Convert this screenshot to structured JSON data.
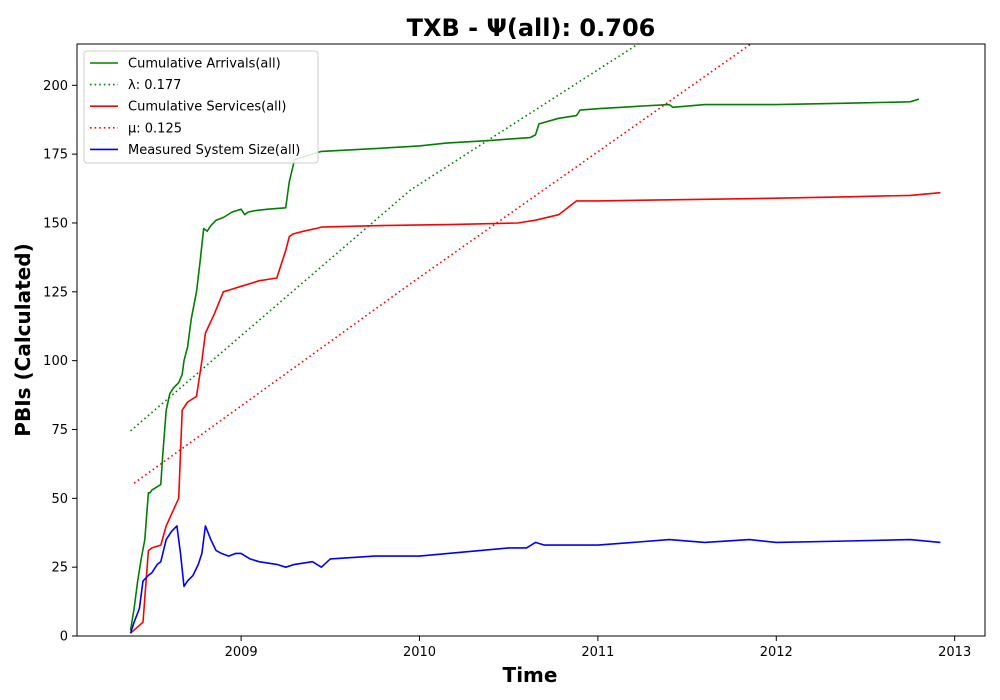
{
  "chart_data": {
    "type": "line",
    "title": "TXB -  Ψ(all): 0.706",
    "xlabel": "Time",
    "ylabel": "PBIs (Calculated)",
    "xlim": [
      2008.08,
      2013.17
    ],
    "ylim": [
      0,
      215
    ],
    "xticks": [
      {
        "value": 2009,
        "label": "2009"
      },
      {
        "value": 2010,
        "label": "2010"
      },
      {
        "value": 2011,
        "label": "2011"
      },
      {
        "value": 2012,
        "label": "2012"
      },
      {
        "value": 2013,
        "label": "2013"
      }
    ],
    "yticks": [
      {
        "value": 0,
        "label": "0"
      },
      {
        "value": 25,
        "label": "25"
      },
      {
        "value": 50,
        "label": "50"
      },
      {
        "value": 75,
        "label": "75"
      },
      {
        "value": 100,
        "label": "100"
      },
      {
        "value": 125,
        "label": "125"
      },
      {
        "value": 150,
        "label": "150"
      },
      {
        "value": 175,
        "label": "175"
      },
      {
        "value": 200,
        "label": "200"
      }
    ],
    "grid": false,
    "legend_position": "top-left",
    "series": [
      {
        "name": "Cumulative Arrivals(all)",
        "color": "#008000",
        "style": "solid",
        "x": [
          2008.38,
          2008.4,
          2008.42,
          2008.44,
          2008.46,
          2008.48,
          2008.49,
          2008.5,
          2008.55,
          2008.56,
          2008.58,
          2008.6,
          2008.62,
          2008.65,
          2008.67,
          2008.68,
          2008.7,
          2008.72,
          2008.75,
          2008.77,
          2008.79,
          2008.81,
          2008.83,
          2008.86,
          2008.9,
          2008.95,
          2009.0,
          2009.02,
          2009.04,
          2009.08,
          2009.15,
          2009.25,
          2009.27,
          2009.3,
          2009.45,
          2009.75,
          2010.0,
          2010.15,
          2010.4,
          2010.62,
          2010.65,
          2010.67,
          2010.78,
          2010.88,
          2010.9,
          2011.0,
          2011.25,
          2011.4,
          2011.42,
          2011.6,
          2012.0,
          2012.4,
          2012.75,
          2012.8
        ],
        "y": [
          2,
          10,
          20,
          28,
          35,
          52,
          52,
          53,
          55,
          65,
          82,
          88,
          90,
          92,
          95,
          100,
          105,
          115,
          125,
          136,
          148,
          147,
          149,
          151,
          152,
          154,
          155,
          153,
          154,
          154.5,
          155,
          155.5,
          165,
          173,
          176,
          177,
          178,
          179,
          180,
          181,
          182,
          186,
          188,
          189,
          191,
          191.5,
          192.5,
          193,
          192,
          193,
          193,
          193.5,
          194,
          195
        ]
      },
      {
        "name": "λ: 0.177",
        "color": "#008000",
        "style": "dotted",
        "x": [
          2008.38,
          2009.95,
          2011.25
        ],
        "y": [
          74.5,
          162,
          216
        ]
      },
      {
        "name": "Cumulative Services(all)",
        "color": "#ff0000",
        "style": "solid",
        "x": [
          2008.38,
          2008.45,
          2008.48,
          2008.5,
          2008.55,
          2008.58,
          2008.65,
          2008.67,
          2008.7,
          2008.75,
          2008.78,
          2008.8,
          2008.85,
          2008.9,
          2008.95,
          2009.0,
          2009.05,
          2009.1,
          2009.2,
          2009.25,
          2009.27,
          2009.29,
          2009.35,
          2009.42,
          2009.45,
          2009.75,
          2010.2,
          2010.55,
          2010.65,
          2010.78,
          2010.88,
          2011.0,
          2011.5,
          2012.0,
          2012.4,
          2012.75,
          2012.92
        ],
        "y": [
          1,
          5,
          31,
          32,
          33,
          40,
          50,
          82,
          85,
          87,
          100,
          110,
          117,
          125,
          126,
          127,
          128,
          129,
          130,
          140,
          145,
          146,
          147,
          148,
          148.5,
          149,
          149.5,
          150,
          151,
          153,
          158,
          158,
          158.5,
          159,
          159.5,
          160,
          161
        ]
      },
      {
        "name": "μ: 0.125",
        "color": "#ff0000",
        "style": "dotted",
        "x": [
          2008.4,
          2009.95,
          2011.88
        ],
        "y": [
          55.5,
          128,
          216
        ]
      },
      {
        "name": "Measured System Size(all)",
        "color": "#0000ff",
        "style": "solid",
        "x": [
          2008.38,
          2008.4,
          2008.43,
          2008.45,
          2008.48,
          2008.5,
          2008.53,
          2008.55,
          2008.58,
          2008.61,
          2008.64,
          2008.66,
          2008.68,
          2008.7,
          2008.73,
          2008.76,
          2008.78,
          2008.8,
          2008.83,
          2008.86,
          2008.89,
          2008.93,
          2008.97,
          2009.0,
          2009.05,
          2009.1,
          2009.2,
          2009.25,
          2009.3,
          2009.4,
          2009.45,
          2009.5,
          2009.75,
          2010.0,
          2010.5,
          2010.6,
          2010.65,
          2010.7,
          2010.75,
          2010.85,
          2011.0,
          2011.4,
          2011.6,
          2011.85,
          2012.0,
          2012.4,
          2012.75,
          2012.92
        ],
        "y": [
          1,
          5,
          10,
          20,
          22,
          23,
          26,
          27,
          35,
          38,
          40,
          30,
          18,
          20,
          22,
          26,
          30,
          40,
          35,
          31,
          30,
          29,
          30,
          30,
          28,
          27,
          26,
          25,
          26,
          27,
          25,
          28,
          29,
          29,
          32,
          32,
          34,
          33,
          33,
          33,
          33,
          35,
          34,
          35,
          34,
          34.5,
          35,
          34
        ]
      }
    ]
  }
}
